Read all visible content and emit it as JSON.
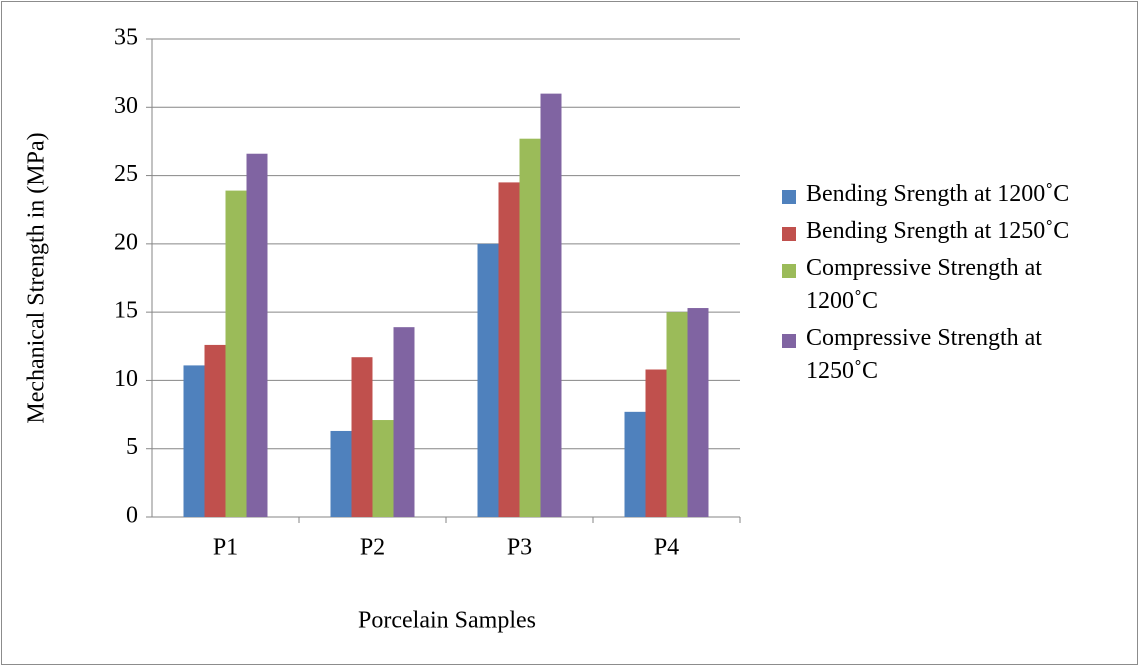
{
  "chart_data": {
    "type": "bar",
    "categories": [
      "P1",
      "P2",
      "P3",
      "P4"
    ],
    "series": [
      {
        "name": "Bending Srength at 1200˚C",
        "color": "#4f81bd",
        "values": [
          11.1,
          6.3,
          20,
          7.7
        ]
      },
      {
        "name": "Bending Srength at 1250˚C",
        "color": "#c0504d",
        "values": [
          12.6,
          11.7,
          24.5,
          10.8
        ]
      },
      {
        "name": "Compressive Strength at 1200˚C",
        "color": "#9bbb59",
        "values": [
          23.9,
          7.1,
          27.7,
          15
        ]
      },
      {
        "name": "Compressive Strength at 1250˚C",
        "color": "#8064a2",
        "values": [
          26.6,
          13.9,
          31,
          15.3
        ]
      }
    ],
    "x_label": "Porcelain Samples",
    "y_label": "Mechanical Strength in (MPa)",
    "ylim": [
      0,
      35
    ],
    "yticks": [
      0,
      5,
      10,
      15,
      20,
      25,
      30,
      35
    ],
    "grid": true
  }
}
